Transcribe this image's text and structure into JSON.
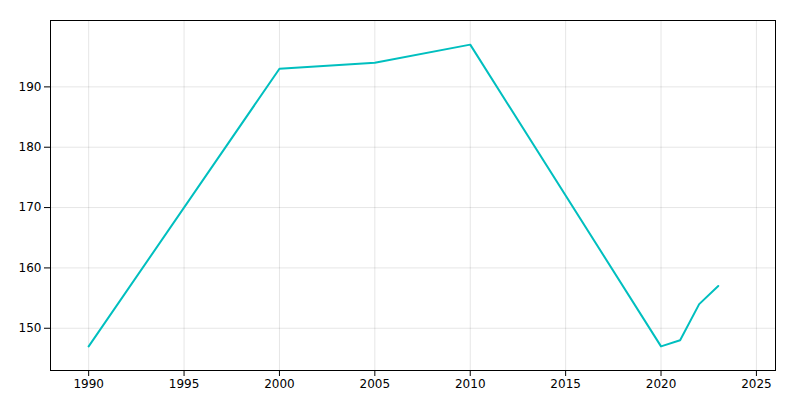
{
  "chart_data": {
    "type": "line",
    "x": [
      1990,
      2000,
      2005,
      2010,
      2020,
      2021,
      2022,
      2023
    ],
    "values": [
      147,
      193,
      194,
      197,
      147,
      148,
      154,
      157
    ],
    "color": "#00BFBF",
    "xlim": [
      1988,
      2026
    ],
    "ylim": [
      143,
      201
    ],
    "xticks": [
      1990,
      1995,
      2000,
      2005,
      2010,
      2015,
      2020,
      2025
    ],
    "yticks": [
      150,
      160,
      170,
      180,
      190
    ],
    "grid": true
  }
}
